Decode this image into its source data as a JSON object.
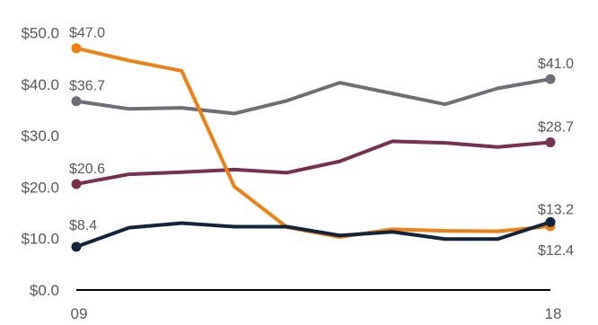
{
  "chart_data": {
    "type": "line",
    "x": [
      "09",
      "10",
      "11",
      "12",
      "13",
      "14",
      "15",
      "16",
      "17",
      "18"
    ],
    "x_tick_labels": [
      "09",
      "18"
    ],
    "y_ticks": [
      0,
      10,
      20,
      30,
      40,
      50
    ],
    "y_tick_labels": [
      "$0.0",
      "$10.0",
      "$20.0",
      "$30.0",
      "$40.0",
      "$50.0"
    ],
    "ylim": [
      0,
      50
    ],
    "grid": false,
    "title": "",
    "xlabel": "",
    "ylabel": "",
    "series": [
      {
        "color": "#6d6e76",
        "values": [
          36.7,
          35.2,
          35.4,
          34.3,
          36.8,
          40.3,
          38.2,
          36.1,
          39.2,
          41.0
        ],
        "start_label": "$36.7",
        "end_label": "$41.0"
      },
      {
        "color": "#7a2e50",
        "values": [
          20.6,
          22.5,
          22.9,
          23.4,
          22.8,
          25.0,
          28.9,
          28.6,
          27.8,
          28.7
        ],
        "start_label": "$20.6",
        "end_label": "$28.7"
      },
      {
        "color": "#f07f12",
        "values": [
          47.0,
          44.6,
          42.6,
          20.1,
          12.2,
          10.3,
          11.8,
          11.5,
          11.4,
          12.4
        ],
        "start_label": "$47.0",
        "end_label": "$12.4"
      },
      {
        "color": "#12243d",
        "values": [
          8.4,
          12.1,
          13.0,
          12.3,
          12.3,
          10.6,
          11.3,
          9.9,
          9.9,
          13.2
        ],
        "start_label": "$8.4",
        "end_label": "$13.2"
      }
    ]
  }
}
